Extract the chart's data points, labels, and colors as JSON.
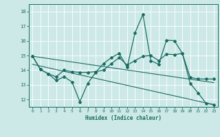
{
  "xlabel": "Humidex (Indice chaleur)",
  "xlim": [
    -0.5,
    23.5
  ],
  "ylim": [
    11.5,
    18.5
  ],
  "yticks": [
    12,
    13,
    14,
    15,
    16,
    17,
    18
  ],
  "xticks": [
    0,
    1,
    2,
    3,
    4,
    5,
    6,
    7,
    8,
    9,
    10,
    11,
    12,
    13,
    14,
    15,
    16,
    17,
    18,
    19,
    20,
    21,
    22,
    23
  ],
  "bg_color": "#cce9e8",
  "line_color": "#1a6b60",
  "grid_color": "#ffffff",
  "line1_x": [
    0,
    1,
    2,
    3,
    4,
    5,
    6,
    7,
    8,
    9,
    10,
    11,
    12,
    13,
    14,
    15,
    16,
    17,
    18,
    19,
    20,
    21,
    22,
    23
  ],
  "line1_y": [
    14.95,
    14.05,
    13.75,
    13.3,
    13.55,
    13.2,
    11.85,
    13.1,
    13.85,
    14.45,
    14.85,
    15.15,
    14.2,
    16.55,
    17.8,
    14.65,
    14.4,
    16.05,
    16.0,
    15.15,
    13.1,
    12.45,
    11.75,
    11.65
  ],
  "line2_x": [
    0,
    1,
    2,
    3,
    4,
    5,
    6,
    7,
    8,
    9,
    10,
    11,
    12,
    13,
    14,
    15,
    16,
    17,
    18,
    19,
    20,
    21,
    22,
    23
  ],
  "line2_y": [
    14.95,
    14.05,
    13.75,
    13.55,
    14.0,
    13.9,
    13.85,
    13.85,
    13.9,
    14.0,
    14.45,
    14.85,
    14.35,
    14.65,
    14.95,
    15.0,
    14.65,
    15.1,
    15.05,
    15.15,
    13.5,
    13.4,
    13.4,
    13.4
  ],
  "line3_x": [
    0,
    23
  ],
  "line3_y": [
    14.95,
    13.15
  ],
  "line4_x": [
    0,
    23
  ],
  "line4_y": [
    14.4,
    11.65
  ]
}
